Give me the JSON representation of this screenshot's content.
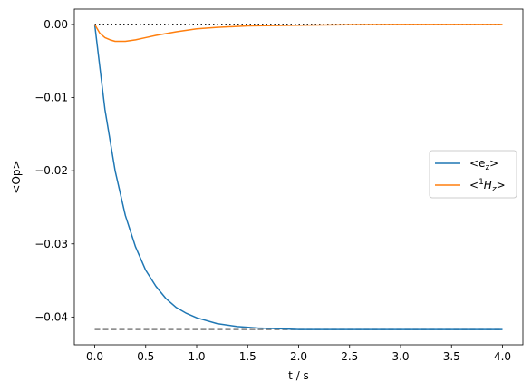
{
  "chart_data": {
    "type": "line",
    "xlabel": "t / s",
    "ylabel": "<Op>",
    "xlim": [
      -0.2,
      4.2
    ],
    "ylim": [
      -0.0438,
      0.0021
    ],
    "xticks": [
      "0.0",
      "0.5",
      "1.0",
      "1.5",
      "2.0",
      "2.5",
      "3.0",
      "3.5",
      "4.0"
    ],
    "yticks": [
      "0.00",
      "−0.01",
      "−0.02",
      "−0.03",
      "−0.04"
    ],
    "grid": false,
    "legend_position": "center-right",
    "series": [
      {
        "name": "<ez>",
        "color": "#1f77b4",
        "x": [
          0.0,
          0.1,
          0.2,
          0.3,
          0.4,
          0.5,
          0.6,
          0.7,
          0.8,
          0.9,
          1.0,
          1.2,
          1.4,
          1.6,
          1.8,
          2.0,
          2.5,
          3.0,
          3.5,
          4.0
        ],
        "y": [
          0.0,
          -0.0116,
          -0.02,
          -0.0261,
          -0.0304,
          -0.0336,
          -0.0358,
          -0.0375,
          -0.0387,
          -0.0395,
          -0.0401,
          -0.0409,
          -0.0413,
          -0.0415,
          -0.0416,
          -0.0417,
          -0.0417,
          -0.0417,
          -0.0417,
          -0.0417
        ]
      },
      {
        "name": "<1Hz>",
        "color": "#ff7f0e",
        "x": [
          0.0,
          0.05,
          0.1,
          0.15,
          0.2,
          0.25,
          0.3,
          0.4,
          0.5,
          0.6,
          0.8,
          1.0,
          1.2,
          1.5,
          2.0,
          2.5,
          3.0,
          4.0
        ],
        "y": [
          0.0,
          -0.0012,
          -0.0018,
          -0.0021,
          -0.0023,
          -0.0023,
          -0.0023,
          -0.0021,
          -0.0018,
          -0.0015,
          -0.001,
          -0.0006,
          -0.0004,
          -0.0002,
          -0.0001,
          -3e-05,
          0.0,
          0.0
        ]
      }
    ],
    "reference_lines": [
      {
        "y": 0.0,
        "style": "dotted",
        "color": "#000000",
        "x": [
          0.0,
          4.0
        ]
      },
      {
        "y": -0.0417,
        "style": "dashed",
        "color": "#808080",
        "x": [
          0.0,
          4.0
        ]
      }
    ]
  }
}
